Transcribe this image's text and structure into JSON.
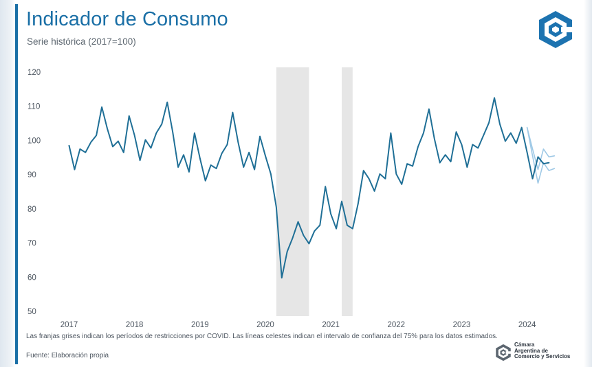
{
  "header": {
    "title": "Indicador de Consumo",
    "subtitle": "Serie histórica (2017=100)"
  },
  "footer": {
    "note": "Las franjas grises indican los períodos de restricciones por COVID. Las líneas celestes indican el intervalo de confianza del 75% para los datos estimados.",
    "source": "Fuente: Elaboración propia",
    "org_lines": [
      "Cámara",
      "Argentina de",
      "Comercio y Servicios"
    ]
  },
  "colors": {
    "title": "#1a6fa6",
    "line": "#1f6f96",
    "band": "#9fc9e6",
    "covid_shading": "#e6e6e6",
    "logo": "#1d73b0"
  },
  "chart_data": {
    "type": "line",
    "title": "Indicador de Consumo",
    "subtitle": "Serie histórica (2017=100)",
    "xlabel": "",
    "ylabel": "",
    "ylim": [
      50,
      120
    ],
    "yticks": [
      50,
      60,
      70,
      80,
      90,
      100,
      110,
      120
    ],
    "xticks": [
      "2017",
      "2018",
      "2019",
      "2020",
      "2021",
      "2022",
      "2023",
      "2024"
    ],
    "x_start": "2017-01",
    "frequency": "monthly",
    "grid": false,
    "legend": "none",
    "shaded_periods": [
      {
        "start": "2020-03",
        "end": "2020-09"
      },
      {
        "start": "2021-03",
        "end": "2021-05"
      }
    ],
    "series": [
      {
        "values": [
          98.5,
          91.5,
          97.5,
          96.5,
          99.5,
          101.5,
          109.8,
          103.5,
          98.2,
          99.8,
          96.5,
          107.2,
          101.5,
          94.2,
          100.2,
          97.8,
          102.2,
          104.8,
          111.2,
          102.5,
          92.2,
          95.8,
          90.8,
          102.2,
          94.8,
          88.2,
          92.8,
          91.8,
          96.2,
          98.8,
          108.2,
          99.5,
          92.2,
          96.5,
          91.5,
          101.2,
          95.5,
          90.2,
          80.5,
          59.8,
          67.5,
          71.5,
          76.2,
          72.2,
          69.8,
          73.5,
          75.2,
          86.5,
          78.5,
          74.2,
          82.2,
          75.2,
          74.2,
          81.5,
          91.2,
          88.8,
          85.2,
          90.2,
          88.8,
          102.2,
          90.2,
          87.2,
          93.2,
          92.5,
          98.2,
          102.2,
          109.2,
          100.5,
          93.5,
          95.8,
          93.8,
          102.5,
          98.8,
          92.2,
          98.8,
          97.8,
          101.5,
          105.2,
          112.5,
          104.8,
          99.8,
          102.2,
          99.2,
          103.8,
          96.5,
          88.8,
          95.2,
          93.2,
          93.5
        ]
      },
      {
        "kind": "confidence_upper",
        "x_start": "2024-01",
        "values": [
          103.8,
          97.5,
          91.5,
          97.5,
          95.2,
          95.5
        ]
      },
      {
        "kind": "confidence_lower",
        "x_start": "2024-01",
        "values": [
          103.8,
          95.5,
          87.5,
          93.5,
          91.2,
          91.8
        ]
      }
    ]
  }
}
